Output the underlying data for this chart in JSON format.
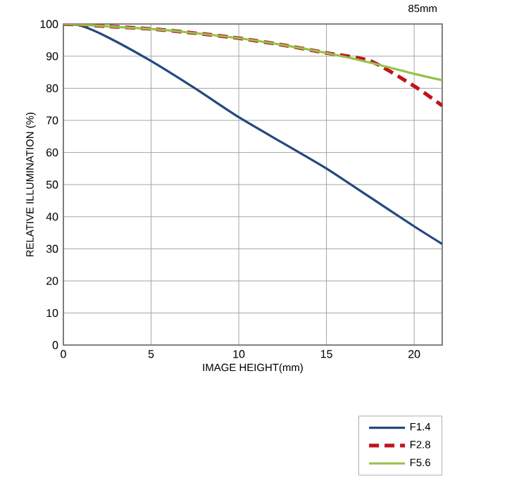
{
  "chart_data": {
    "type": "line",
    "title": "85mm",
    "xlabel": "IMAGE HEIGHT(mm)",
    "ylabel": "RELATIVE ILLUMINATION (%)",
    "xlim": [
      0,
      21.6
    ],
    "ylim": [
      0,
      100
    ],
    "xticks": [
      0,
      5,
      10,
      15,
      20
    ],
    "yticks": [
      0,
      10,
      20,
      30,
      40,
      50,
      60,
      70,
      80,
      90,
      100
    ],
    "grid": true,
    "legend": "bottom right",
    "x": [
      0,
      1,
      2.5,
      5,
      7.5,
      10,
      12.5,
      15,
      17.5,
      20,
      21.6
    ],
    "series": [
      {
        "name": "F1.4",
        "color": "#24497f",
        "line_style": "solid",
        "values": [
          100,
          99.5,
          96,
          88.5,
          80,
          71,
          63,
          55,
          46,
          37,
          31.5
        ]
      },
      {
        "name": "F2.8",
        "color": "#c0141c",
        "line_style": "dashed",
        "values": [
          100,
          99.8,
          99.3,
          98.5,
          97.2,
          95.6,
          93.5,
          91,
          88.5,
          80.7,
          74.6
        ]
      },
      {
        "name": "F5.6",
        "color": "#93c24a",
        "line_style": "solid",
        "values": [
          100,
          99.8,
          99.3,
          98.5,
          97.2,
          95.6,
          93.5,
          91,
          88,
          84.5,
          82.5
        ]
      }
    ]
  }
}
